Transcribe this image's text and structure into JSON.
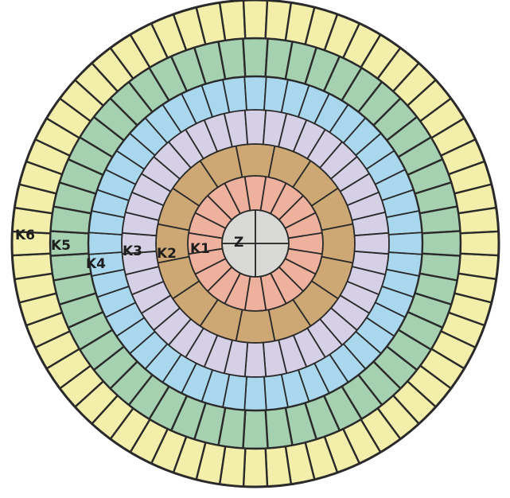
{
  "rings": [
    {
      "id": "Z",
      "label": "Z",
      "segments": 4,
      "color": "#d8d8d6"
    },
    {
      "id": "K1",
      "label": "K1",
      "segments": 20,
      "color": "#eeb19d"
    },
    {
      "id": "K2",
      "label": "K2",
      "segments": 16,
      "color": "#cda874"
    },
    {
      "id": "K3",
      "label": "K3",
      "segments": 40,
      "color": "#d5d0e6"
    },
    {
      "id": "K4",
      "label": "K4",
      "segments": 48,
      "color": "#a9d8ee"
    },
    {
      "id": "K5",
      "label": "K5",
      "segments": 52,
      "color": "#a6d1b1"
    },
    {
      "id": "K6",
      "label": "K6",
      "segments": 64,
      "color": "#f3eeaa"
    }
  ],
  "stroke_color": "#2a2a2a"
}
